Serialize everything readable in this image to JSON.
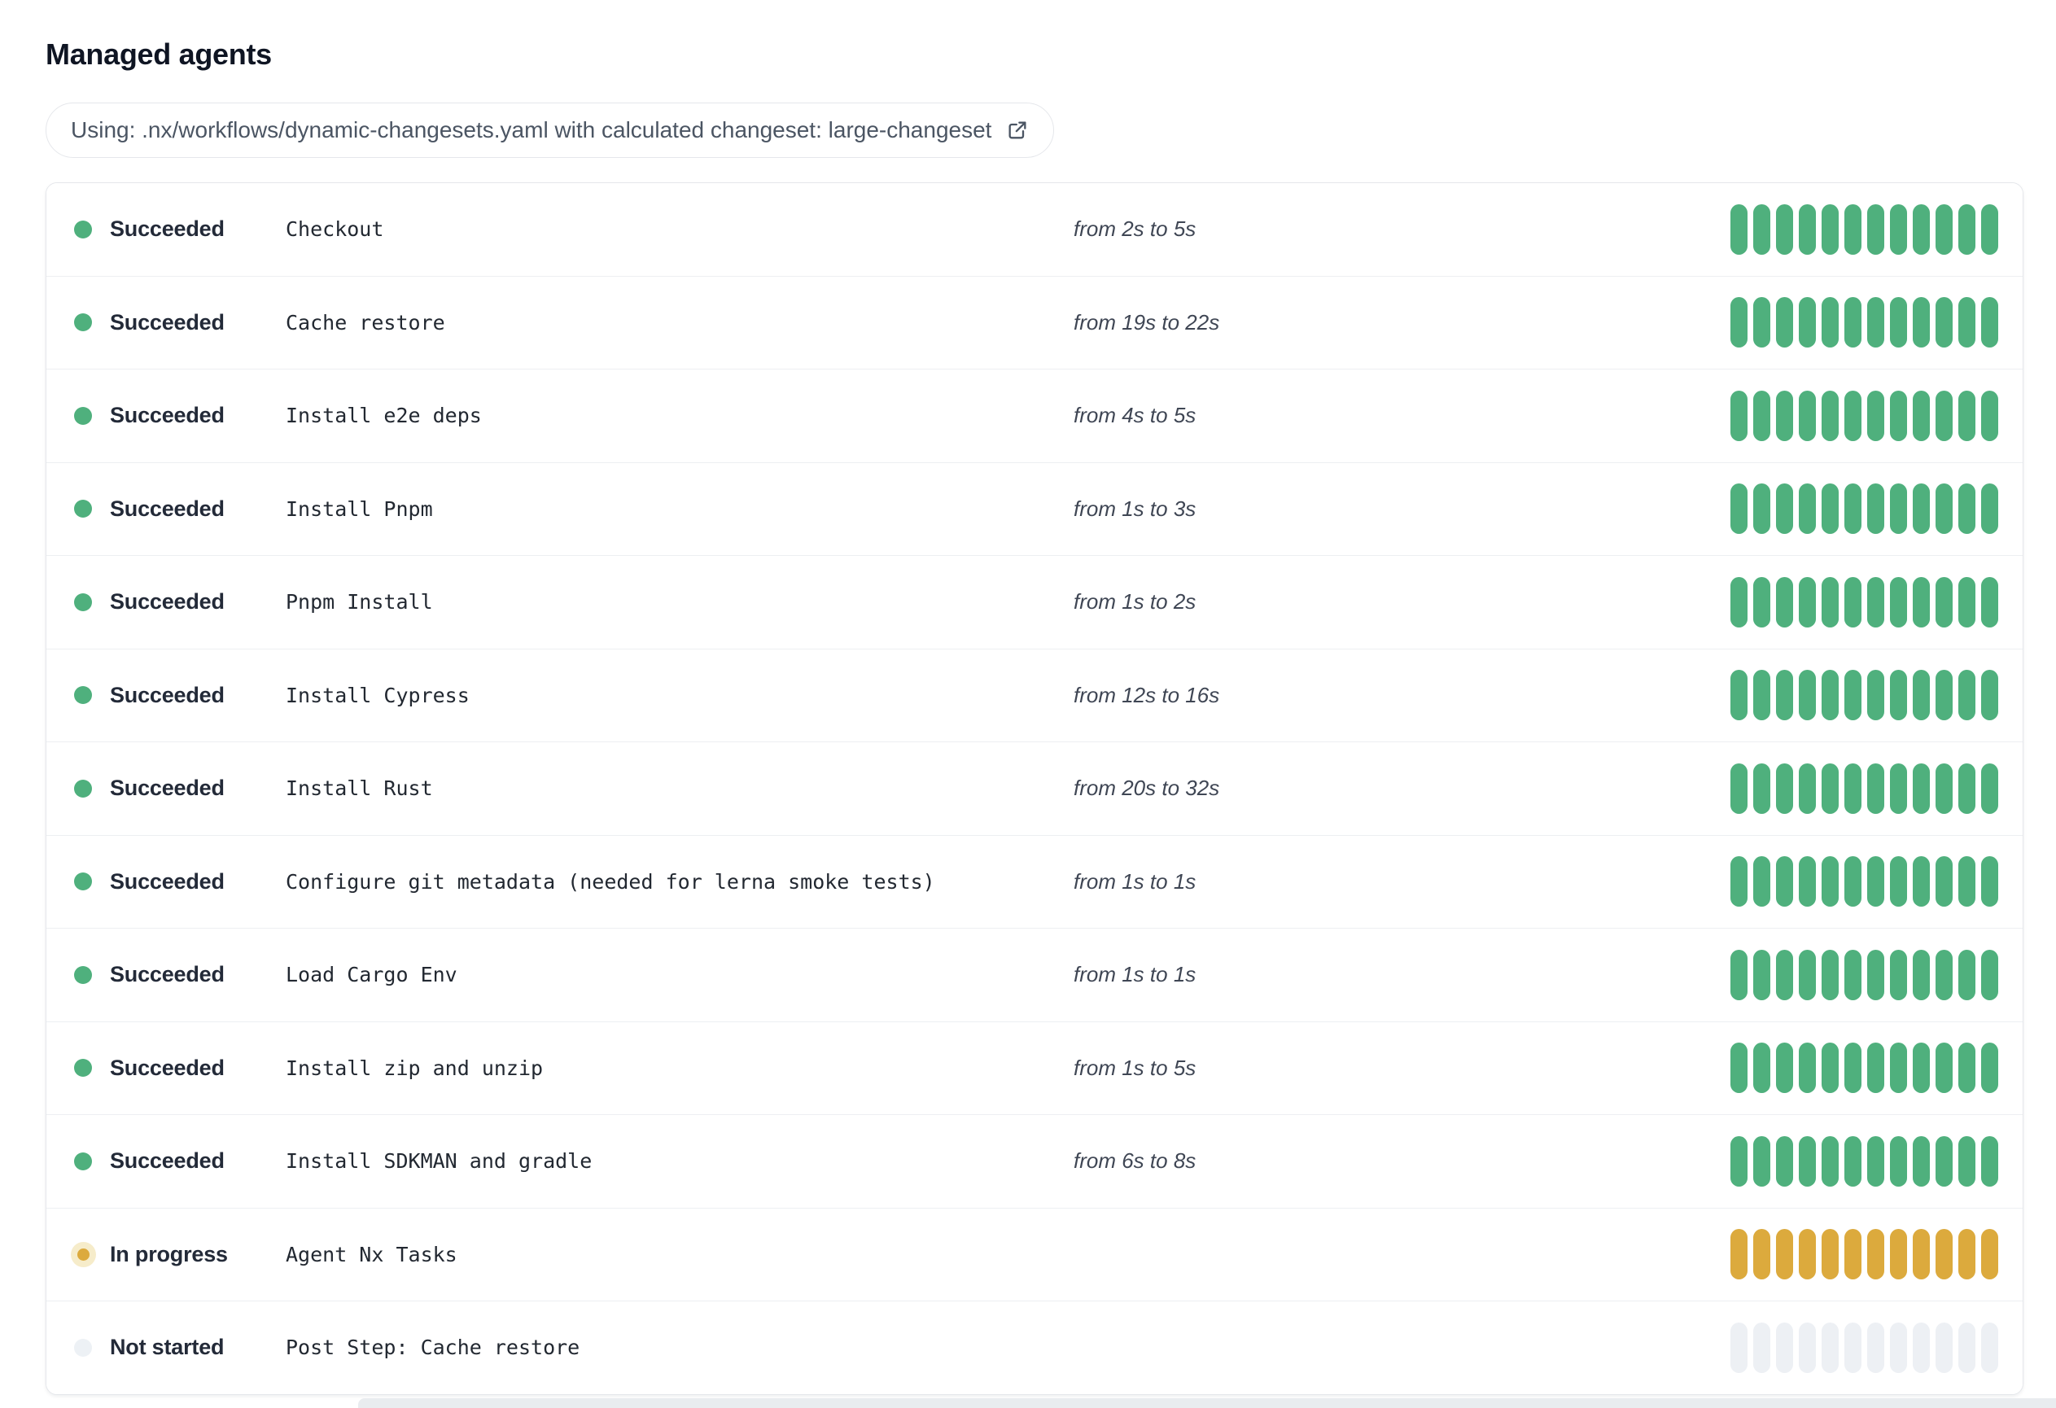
{
  "page": {
    "title": "Managed agents"
  },
  "workflow_banner": {
    "text": "Using: .nx/workflows/dynamic-changesets.yaml with calculated changeset: large-changeset",
    "icon": "external-link-icon"
  },
  "colors": {
    "succeeded": "#4fb07d",
    "in_progress": "#dcaa3d",
    "in_progress_halo": "#f6ecca",
    "not_started": "#edf0f4",
    "not_started_dot": "#edf1f5"
  },
  "agents": {
    "segments_per_bar": 12,
    "rows": [
      {
        "status": "succeeded",
        "status_label": "Succeeded",
        "name": "Checkout",
        "duration": "from 2s to 5s"
      },
      {
        "status": "succeeded",
        "status_label": "Succeeded",
        "name": "Cache restore",
        "duration": "from 19s to 22s"
      },
      {
        "status": "succeeded",
        "status_label": "Succeeded",
        "name": "Install e2e deps",
        "duration": "from 4s to 5s"
      },
      {
        "status": "succeeded",
        "status_label": "Succeeded",
        "name": "Install Pnpm",
        "duration": "from 1s to 3s"
      },
      {
        "status": "succeeded",
        "status_label": "Succeeded",
        "name": "Pnpm Install",
        "duration": "from 1s to 2s"
      },
      {
        "status": "succeeded",
        "status_label": "Succeeded",
        "name": "Install Cypress",
        "duration": "from 12s to 16s"
      },
      {
        "status": "succeeded",
        "status_label": "Succeeded",
        "name": "Install Rust",
        "duration": "from 20s to 32s"
      },
      {
        "status": "succeeded",
        "status_label": "Succeeded",
        "name": "Configure git metadata (needed for lerna smoke tests)",
        "duration": "from 1s to 1s"
      },
      {
        "status": "succeeded",
        "status_label": "Succeeded",
        "name": "Load Cargo Env",
        "duration": "from 1s to 1s"
      },
      {
        "status": "succeeded",
        "status_label": "Succeeded",
        "name": "Install zip and unzip",
        "duration": "from 1s to 5s"
      },
      {
        "status": "succeeded",
        "status_label": "Succeeded",
        "name": "Install SDKMAN and gradle",
        "duration": "from 6s to 8s"
      },
      {
        "status": "in_progress",
        "status_label": "In progress",
        "name": "Agent Nx Tasks",
        "duration": ""
      },
      {
        "status": "not_started",
        "status_label": "Not started",
        "name": "Post Step: Cache restore",
        "duration": ""
      }
    ]
  }
}
